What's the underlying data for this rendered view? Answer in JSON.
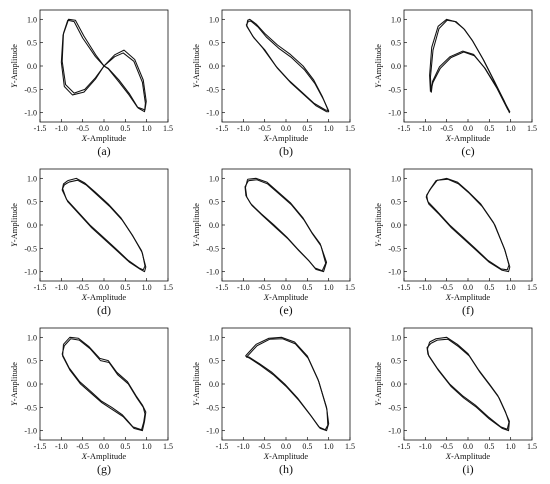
{
  "figure": {
    "x_axis_label_var": "X",
    "x_axis_label_rest": "-Amplitude",
    "y_axis_label_var": "Y",
    "y_axis_label_rest": "-Amplitude"
  },
  "chart_data": [
    {
      "type": "line",
      "panel_label": "(a)",
      "xlabel": "X-Amplitude",
      "ylabel": "Y-Amplitude",
      "xlim": [
        -1.5,
        1.5
      ],
      "ylim": [
        -1.2,
        1.2
      ],
      "xticks": [
        "-1.5",
        "-1.0",
        "-0.5",
        "0.0",
        "0.5",
        "1.0",
        "1.5"
      ],
      "yticks": [
        "-1.0",
        "-0.5",
        "0.0",
        "0.5",
        "1.0"
      ],
      "series": [
        {
          "x": [
            0.0,
            0.25,
            0.45,
            0.7,
            0.9,
            0.97,
            0.95,
            0.8,
            0.6,
            0.35,
            0.1,
            0.0,
            -0.2,
            -0.45,
            -0.7,
            -0.9,
            -0.98,
            -0.95,
            -0.85,
            -0.7,
            -0.5,
            -0.2,
            0.0
          ],
          "y": [
            0.0,
            0.2,
            0.28,
            0.1,
            -0.35,
            -0.8,
            -0.98,
            -0.9,
            -0.6,
            -0.3,
            -0.05,
            0.0,
            -0.25,
            -0.5,
            -0.58,
            -0.4,
            0.1,
            0.7,
            0.98,
            0.95,
            0.6,
            0.2,
            0.0
          ]
        },
        {
          "x": [
            0.0,
            0.25,
            0.47,
            0.72,
            0.92,
            0.99,
            0.96,
            0.78,
            0.57,
            0.33,
            0.1,
            0.0,
            -0.2,
            -0.47,
            -0.74,
            -0.93,
            -1.0,
            -0.96,
            -0.83,
            -0.67,
            -0.47,
            -0.18,
            0.0
          ],
          "y": [
            0.0,
            0.24,
            0.34,
            0.14,
            -0.3,
            -0.76,
            -0.94,
            -0.88,
            -0.6,
            -0.32,
            -0.06,
            0.0,
            -0.28,
            -0.56,
            -0.62,
            -0.44,
            0.08,
            0.66,
            1.0,
            0.98,
            0.64,
            0.22,
            0.0
          ]
        }
      ]
    },
    {
      "type": "line",
      "panel_label": "(b)",
      "xlabel": "X-Amplitude",
      "ylabel": "Y-Amplitude",
      "xlim": [
        -1.5,
        1.5
      ],
      "ylim": [
        -1.2,
        1.2
      ],
      "xticks": [
        "-1.5",
        "-1.0",
        "-0.5",
        "0.0",
        "0.5",
        "1.0",
        "1.5"
      ],
      "yticks": [
        "-1.0",
        "-0.5",
        "0.0",
        "0.5",
        "1.0"
      ],
      "series": [
        {
          "x": [
            -0.9,
            -0.85,
            -0.7,
            -0.5,
            -0.2,
            0.1,
            0.4,
            0.65,
            0.85,
            1.0,
            0.95,
            0.7,
            0.4,
            0.1,
            -0.2,
            -0.5,
            -0.75,
            -0.92,
            -0.9
          ],
          "y": [
            0.98,
            1.0,
            0.9,
            0.7,
            0.45,
            0.25,
            0.0,
            -0.3,
            -0.65,
            -0.98,
            -0.98,
            -0.85,
            -0.6,
            -0.35,
            -0.05,
            0.35,
            0.6,
            0.85,
            0.98
          ]
        },
        {
          "x": [
            -0.88,
            -0.82,
            -0.66,
            -0.46,
            -0.17,
            0.13,
            0.43,
            0.68,
            0.88,
            1.0,
            0.92,
            0.66,
            0.36,
            0.06,
            -0.24,
            -0.54,
            -0.78,
            -0.93,
            -0.88
          ],
          "y": [
            0.96,
            0.96,
            0.84,
            0.62,
            0.38,
            0.18,
            -0.08,
            -0.38,
            -0.72,
            -0.96,
            -0.94,
            -0.8,
            -0.55,
            -0.3,
            0.0,
            0.38,
            0.64,
            0.88,
            0.96
          ]
        }
      ]
    },
    {
      "type": "line",
      "panel_label": "(c)",
      "xlabel": "X-Amplitude",
      "ylabel": "Y-Amplitude",
      "xlim": [
        -1.5,
        1.5
      ],
      "ylim": [
        -1.2,
        1.2
      ],
      "xticks": [
        "-1.5",
        "-1.0",
        "-0.5",
        "0.0",
        "0.5",
        "1.0",
        "1.5"
      ],
      "yticks": [
        "-1.0",
        "-0.5",
        "0.0",
        "0.5",
        "1.0"
      ],
      "series": [
        {
          "x": [
            -0.88,
            -0.9,
            -0.85,
            -0.7,
            -0.5,
            -0.3,
            -0.1,
            0.1,
            0.35,
            0.6,
            0.85,
            0.97,
            0.95,
            0.7,
            0.4,
            0.15,
            -0.1,
            -0.4,
            -0.65,
            -0.82,
            -0.88
          ],
          "y": [
            -0.55,
            -0.2,
            0.4,
            0.85,
            1.0,
            0.95,
            0.8,
            0.55,
            0.15,
            -0.3,
            -0.75,
            -1.0,
            -0.95,
            -0.5,
            -0.05,
            0.22,
            0.3,
            0.18,
            -0.05,
            -0.35,
            -0.55
          ]
        },
        {
          "x": [
            -0.86,
            -0.88,
            -0.82,
            -0.68,
            -0.49,
            -0.28,
            -0.08,
            0.12,
            0.37,
            0.62,
            0.86,
            0.98,
            0.93,
            0.68,
            0.38,
            0.13,
            -0.12,
            -0.42,
            -0.67,
            -0.83,
            -0.86
          ],
          "y": [
            -0.57,
            -0.24,
            0.34,
            0.8,
            0.98,
            0.95,
            0.78,
            0.52,
            0.12,
            -0.33,
            -0.78,
            -0.98,
            -0.93,
            -0.48,
            -0.03,
            0.25,
            0.32,
            0.2,
            -0.02,
            -0.33,
            -0.57
          ]
        }
      ]
    },
    {
      "type": "line",
      "panel_label": "(d)",
      "xlabel": "X-Amplitude",
      "ylabel": "Y-Amplitude",
      "xlim": [
        -1.5,
        1.5
      ],
      "ylim": [
        -1.2,
        1.2
      ],
      "xticks": [
        "-1.5",
        "-1.0",
        "-0.5",
        "0.0",
        "0.5",
        "1.0",
        "1.5"
      ],
      "yticks": [
        "-1.0",
        "-0.5",
        "0.0",
        "0.5",
        "1.0"
      ],
      "series": [
        {
          "x": [
            -0.85,
            -0.65,
            -0.45,
            -0.2,
            0.1,
            0.4,
            0.65,
            0.88,
            0.98,
            0.95,
            0.85,
            0.6,
            0.3,
            0.0,
            -0.3,
            -0.6,
            -0.85,
            -0.98,
            -0.95,
            -0.85
          ],
          "y": [
            0.95,
            1.0,
            0.9,
            0.7,
            0.45,
            0.15,
            -0.2,
            -0.55,
            -0.9,
            -1.0,
            -0.95,
            -0.8,
            -0.55,
            -0.3,
            -0.05,
            0.25,
            0.5,
            0.75,
            0.88,
            0.95
          ]
        },
        {
          "x": [
            -0.82,
            -0.62,
            -0.42,
            -0.17,
            0.13,
            0.43,
            0.68,
            0.9,
            0.96,
            0.92,
            0.82,
            0.57,
            0.27,
            -0.03,
            -0.33,
            -0.63,
            -0.88,
            -0.97,
            -0.93,
            -0.82
          ],
          "y": [
            0.92,
            0.96,
            0.86,
            0.65,
            0.4,
            0.1,
            -0.24,
            -0.6,
            -0.88,
            -0.96,
            -0.92,
            -0.76,
            -0.5,
            -0.25,
            0.0,
            0.3,
            0.55,
            0.78,
            0.86,
            0.92
          ]
        }
      ]
    },
    {
      "type": "line",
      "panel_label": "(e)",
      "xlabel": "X-Amplitude",
      "ylabel": "Y-Amplitude",
      "xlim": [
        -1.5,
        1.5
      ],
      "ylim": [
        -1.2,
        1.2
      ],
      "xticks": [
        "-1.5",
        "-1.0",
        "-0.5",
        "0.0",
        "0.5",
        "1.0",
        "1.5"
      ],
      "yticks": [
        "-1.0",
        "-0.5",
        "0.0",
        "0.5",
        "1.0"
      ],
      "series": [
        {
          "x": [
            -0.9,
            -0.7,
            -0.45,
            -0.2,
            0.1,
            0.4,
            0.6,
            0.8,
            0.95,
            0.88,
            0.7,
            0.55,
            0.3,
            0.05,
            -0.25,
            -0.55,
            -0.8,
            -0.92,
            -0.95,
            -0.9
          ],
          "y": [
            0.98,
            1.0,
            0.92,
            0.72,
            0.48,
            0.15,
            -0.15,
            -0.4,
            -0.8,
            -1.0,
            -0.95,
            -0.78,
            -0.55,
            -0.3,
            -0.05,
            0.2,
            0.42,
            0.6,
            0.8,
            0.98
          ]
        },
        {
          "x": [
            -0.88,
            -0.68,
            -0.43,
            -0.18,
            0.12,
            0.42,
            0.62,
            0.82,
            0.93,
            0.85,
            0.68,
            0.52,
            0.27,
            0.02,
            -0.28,
            -0.58,
            -0.83,
            -0.94,
            -0.96,
            -0.88
          ],
          "y": [
            0.95,
            0.97,
            0.88,
            0.68,
            0.44,
            0.11,
            -0.19,
            -0.45,
            -0.82,
            -0.98,
            -0.92,
            -0.75,
            -0.51,
            -0.26,
            0.0,
            0.24,
            0.46,
            0.63,
            0.82,
            0.95
          ]
        }
      ]
    },
    {
      "type": "line",
      "panel_label": "(f)",
      "xlabel": "X-Amplitude",
      "ylabel": "Y-Amplitude",
      "xlim": [
        -1.5,
        1.5
      ],
      "ylim": [
        -1.2,
        1.2
      ],
      "xticks": [
        "-1.5",
        "-1.0",
        "-0.5",
        "0.0",
        "0.5",
        "1.0",
        "1.5"
      ],
      "yticks": [
        "-1.0",
        "-0.5",
        "0.0",
        "0.5",
        "1.0"
      ],
      "series": [
        {
          "x": [
            -0.9,
            -0.75,
            -0.5,
            -0.25,
            0.0,
            0.3,
            0.6,
            0.85,
            0.98,
            0.95,
            0.8,
            0.5,
            0.2,
            -0.1,
            -0.4,
            -0.7,
            -0.92,
            -0.98,
            -0.9
          ],
          "y": [
            0.75,
            0.95,
            1.0,
            0.92,
            0.72,
            0.45,
            0.05,
            -0.5,
            -0.9,
            -1.0,
            -0.97,
            -0.8,
            -0.55,
            -0.3,
            -0.05,
            0.25,
            0.45,
            0.6,
            0.75
          ]
        },
        {
          "x": [
            -0.87,
            -0.72,
            -0.47,
            -0.22,
            0.03,
            0.33,
            0.63,
            0.87,
            0.96,
            0.92,
            0.77,
            0.47,
            0.17,
            -0.13,
            -0.43,
            -0.73,
            -0.94,
            -0.97,
            -0.87
          ],
          "y": [
            0.78,
            0.96,
            0.98,
            0.88,
            0.68,
            0.4,
            0.0,
            -0.55,
            -0.86,
            -0.96,
            -0.94,
            -0.76,
            -0.5,
            -0.25,
            0.0,
            0.3,
            0.5,
            0.64,
            0.78
          ]
        }
      ]
    },
    {
      "type": "line",
      "panel_label": "(g)",
      "xlabel": "X-Amplitude",
      "ylabel": "Y-Amplitude",
      "xlim": [
        -1.5,
        1.5
      ],
      "ylim": [
        -1.2,
        1.2
      ],
      "xticks": [
        "-1.5",
        "-1.0",
        "-0.5",
        "0.0",
        "0.5",
        "1.0",
        "1.5"
      ],
      "yticks": [
        "-1.0",
        "-0.5",
        "0.0",
        "0.5",
        "1.0"
      ],
      "series": [
        {
          "x": [
            -0.95,
            -0.8,
            -0.6,
            -0.35,
            -0.1,
            0.1,
            0.3,
            0.55,
            0.75,
            0.9,
            0.98,
            0.95,
            0.9,
            0.7,
            0.45,
            0.2,
            -0.05,
            -0.3,
            -0.55,
            -0.8,
            -0.97,
            -0.95
          ],
          "y": [
            0.85,
            1.0,
            0.98,
            0.8,
            0.55,
            0.5,
            0.25,
            0.05,
            -0.25,
            -0.45,
            -0.6,
            -0.8,
            -1.0,
            -0.95,
            -0.7,
            -0.55,
            -0.4,
            -0.2,
            0.0,
            0.3,
            0.6,
            0.85
          ]
        },
        {
          "x": [
            -0.93,
            -0.78,
            -0.58,
            -0.33,
            -0.08,
            0.12,
            0.32,
            0.57,
            0.77,
            0.92,
            0.96,
            0.93,
            0.88,
            0.68,
            0.43,
            0.18,
            -0.07,
            -0.32,
            -0.57,
            -0.82,
            -0.98,
            -0.93
          ],
          "y": [
            0.82,
            0.97,
            0.94,
            0.76,
            0.5,
            0.46,
            0.2,
            0.0,
            -0.3,
            -0.5,
            -0.64,
            -0.82,
            -0.98,
            -0.92,
            -0.66,
            -0.5,
            -0.36,
            -0.15,
            0.05,
            0.35,
            0.64,
            0.82
          ]
        }
      ]
    },
    {
      "type": "line",
      "panel_label": "(h)",
      "xlabel": "X-Amplitude",
      "ylabel": "Y-Amplitude",
      "xlim": [
        -1.5,
        1.5
      ],
      "ylim": [
        -1.2,
        1.2
      ],
      "xticks": [
        "-1.5",
        "-1.0",
        "-0.5",
        "0.0",
        "0.5",
        "1.0",
        "1.5"
      ],
      "yticks": [
        "-1.0",
        "-0.5",
        "0.0",
        "0.5",
        "1.0"
      ],
      "series": [
        {
          "x": [
            -0.95,
            -0.7,
            -0.4,
            -0.1,
            0.2,
            0.5,
            0.75,
            0.95,
            1.0,
            0.95,
            0.8,
            0.6,
            0.3,
            0.0,
            -0.3,
            -0.6,
            -0.85,
            -0.95
          ],
          "y": [
            0.6,
            0.85,
            0.98,
            1.0,
            0.9,
            0.6,
            0.1,
            -0.5,
            -0.85,
            -1.0,
            -0.95,
            -0.7,
            -0.35,
            -0.05,
            0.2,
            0.4,
            0.55,
            0.6
          ]
        },
        {
          "x": [
            -0.93,
            -0.68,
            -0.38,
            -0.08,
            0.22,
            0.52,
            0.77,
            0.96,
            0.98,
            0.92,
            0.77,
            0.57,
            0.27,
            -0.03,
            -0.33,
            -0.63,
            -0.87,
            -0.93
          ],
          "y": [
            0.57,
            0.82,
            0.96,
            0.97,
            0.86,
            0.55,
            0.05,
            -0.55,
            -0.88,
            -0.98,
            -0.92,
            -0.66,
            -0.3,
            0.0,
            0.25,
            0.44,
            0.58,
            0.57
          ]
        }
      ]
    },
    {
      "type": "line",
      "panel_label": "(i)",
      "xlabel": "X-Amplitude",
      "ylabel": "Y-Amplitude",
      "xlim": [
        -1.5,
        1.5
      ],
      "ylim": [
        -1.2,
        1.2
      ],
      "xticks": [
        "-1.5",
        "-1.0",
        "-0.5",
        "0.0",
        "0.5",
        "1.0",
        "1.5"
      ],
      "yticks": [
        "-1.0",
        "-0.5",
        "0.0",
        "0.5",
        "1.0"
      ],
      "series": [
        {
          "x": [
            -0.9,
            -0.75,
            -0.5,
            -0.25,
            0.0,
            0.25,
            0.5,
            0.7,
            0.85,
            0.97,
            0.95,
            0.8,
            0.5,
            0.2,
            -0.1,
            -0.4,
            -0.7,
            -0.92,
            -0.95,
            -0.9
          ],
          "y": [
            0.9,
            0.97,
            1.0,
            0.85,
            0.65,
            0.3,
            0.0,
            -0.25,
            -0.55,
            -0.8,
            -1.0,
            -0.95,
            -0.75,
            -0.5,
            -0.3,
            -0.05,
            0.3,
            0.6,
            0.75,
            0.9
          ]
        },
        {
          "x": [
            -0.87,
            -0.72,
            -0.47,
            -0.22,
            0.03,
            0.28,
            0.53,
            0.73,
            0.88,
            0.96,
            0.92,
            0.77,
            0.47,
            0.17,
            -0.13,
            -0.43,
            -0.73,
            -0.94,
            -0.96,
            -0.87
          ],
          "y": [
            0.87,
            0.94,
            0.96,
            0.8,
            0.6,
            0.25,
            -0.05,
            -0.3,
            -0.6,
            -0.82,
            -0.97,
            -0.92,
            -0.7,
            -0.45,
            -0.25,
            0.0,
            0.35,
            0.64,
            0.78,
            0.87
          ]
        }
      ]
    }
  ]
}
